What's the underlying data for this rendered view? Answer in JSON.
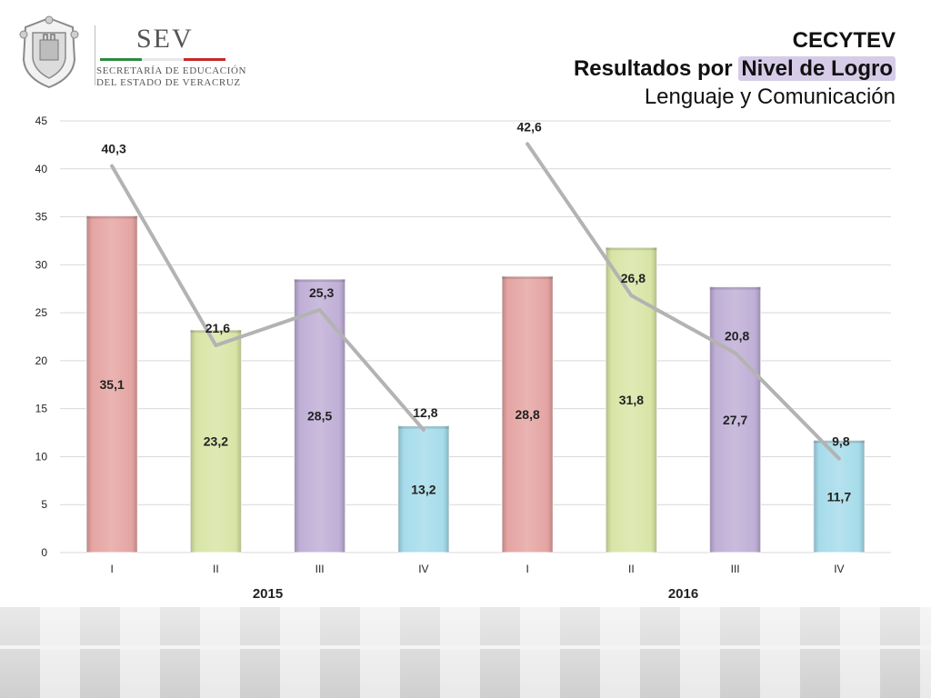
{
  "header": {
    "logo": {
      "abbreviation": "SEV",
      "line1": "SECRETARÍA DE EDUCACIÓN",
      "line2": "DEL ESTADO DE VERACRUZ"
    },
    "title": "CECYTEV",
    "subtitle_prefix": "Resultados por ",
    "subtitle_highlight": "Nivel de Logro",
    "subtitle2": "Lenguaje y Comunicación"
  },
  "colors": {
    "I": "#e29b99",
    "II": "#d4e29c",
    "III": "#b9a6d2",
    "IV": "#9dd8e8",
    "line": "#b3b3b3",
    "grid": "#d9d9d9",
    "highlight": "#d6cce8",
    "flag_green": "#2e8b3d",
    "flag_white": "#e8e8e8",
    "flag_red": "#c62828"
  },
  "chart_data": {
    "type": "bar",
    "ylim": [
      0,
      45
    ],
    "yticks": [
      0,
      5,
      10,
      15,
      20,
      25,
      30,
      35,
      40,
      45
    ],
    "grid": true,
    "groups": [
      {
        "label": "2015",
        "categories": [
          "I",
          "II",
          "III",
          "IV"
        ],
        "bars": [
          35.1,
          23.2,
          28.5,
          13.2
        ],
        "bar_labels": [
          "35,1",
          "23,2",
          "28,5",
          "13,2"
        ],
        "line": [
          40.3,
          21.6,
          25.3,
          12.8
        ],
        "line_labels": [
          "40,3",
          "21,6",
          "25,3",
          "12,8"
        ]
      },
      {
        "label": "2016",
        "categories": [
          "I",
          "II",
          "III",
          "IV"
        ],
        "bars": [
          28.8,
          31.8,
          27.7,
          11.7
        ],
        "bar_labels": [
          "28,8",
          "31,8",
          "27,7",
          "11,7"
        ],
        "line": [
          42.6,
          26.8,
          20.8,
          9.8
        ],
        "line_labels": [
          "42,6",
          "26,8",
          "20,8",
          "9,8"
        ]
      }
    ]
  }
}
